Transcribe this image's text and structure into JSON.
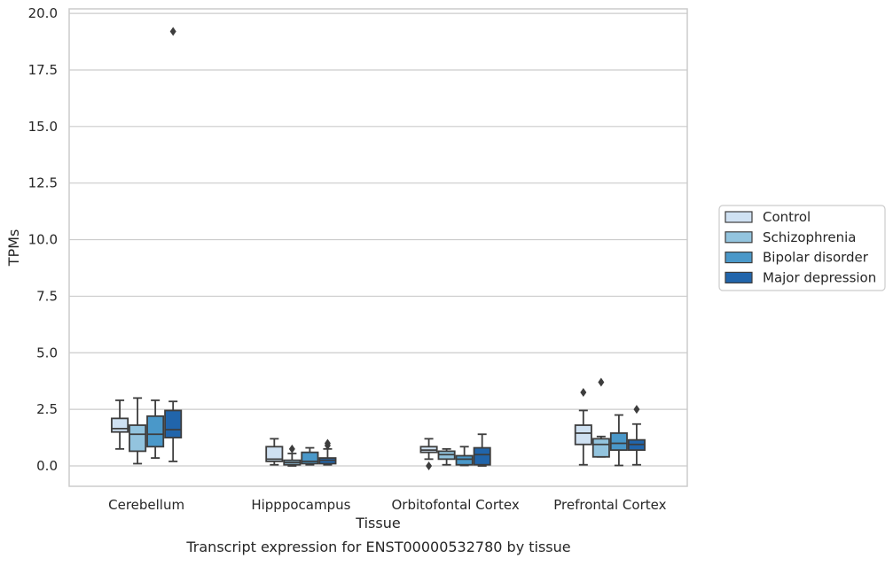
{
  "caption": "Transcript expression for ENST00000532780 by tissue",
  "colors": {
    "Control": "#cfe1f2",
    "Schizophrenia": "#93c4de",
    "Bipolar disorder": "#4a98c9",
    "Major depression": "#2165ab",
    "grid": "#cccccc",
    "frame": "#cccccc",
    "box_edge": "#3d3d3d"
  },
  "chart_data": {
    "type": "box",
    "xlabel": "Tissue",
    "ylabel": "TPMs",
    "ylim": [
      -0.9,
      20.2
    ],
    "yticks": [
      0.0,
      2.5,
      5.0,
      7.5,
      10.0,
      12.5,
      15.0,
      17.5,
      20.0
    ],
    "ytick_labels": [
      "0.0",
      "2.5",
      "5.0",
      "7.5",
      "10.0",
      "12.5",
      "15.0",
      "17.5",
      "20.0"
    ],
    "categories": [
      "Cerebellum",
      "Hipppocampus",
      "Orbitofontal Cortex",
      "Prefrontal Cortex"
    ],
    "grid": true,
    "legend_position": "right",
    "series": [
      {
        "name": "Control",
        "boxes": [
          {
            "whislo": 0.75,
            "q1": 1.5,
            "med": 1.65,
            "q3": 2.1,
            "whishi": 2.9,
            "fliers": []
          },
          {
            "whislo": 0.05,
            "q1": 0.2,
            "med": 0.3,
            "q3": 0.85,
            "whishi": 1.2,
            "fliers": []
          },
          {
            "whislo": 0.3,
            "q1": 0.6,
            "med": 0.7,
            "q3": 0.85,
            "whishi": 1.2,
            "fliers": [
              0.0
            ]
          },
          {
            "whislo": 0.05,
            "q1": 0.95,
            "med": 1.45,
            "q3": 1.8,
            "whishi": 2.45,
            "fliers": [
              3.25
            ]
          }
        ]
      },
      {
        "name": "Schizophrenia",
        "boxes": [
          {
            "whislo": 0.1,
            "q1": 0.65,
            "med": 1.4,
            "q3": 1.8,
            "whishi": 3.0,
            "fliers": []
          },
          {
            "whislo": 0.0,
            "q1": 0.05,
            "med": 0.15,
            "q3": 0.25,
            "whishi": 0.55,
            "fliers": [
              0.75
            ]
          },
          {
            "whislo": 0.05,
            "q1": 0.3,
            "med": 0.5,
            "q3": 0.65,
            "whishi": 0.75,
            "fliers": []
          },
          {
            "whislo": 0.4,
            "q1": 0.4,
            "med": 0.95,
            "q3": 1.2,
            "whishi": 1.3,
            "fliers": [
              3.7
            ]
          }
        ]
      },
      {
        "name": "Bipolar disorder",
        "boxes": [
          {
            "whislo": 0.35,
            "q1": 0.85,
            "med": 1.4,
            "q3": 2.2,
            "whishi": 2.9,
            "fliers": []
          },
          {
            "whislo": 0.05,
            "q1": 0.1,
            "med": 0.2,
            "q3": 0.6,
            "whishi": 0.8,
            "fliers": []
          },
          {
            "whislo": 0.02,
            "q1": 0.05,
            "med": 0.3,
            "q3": 0.45,
            "whishi": 0.85,
            "fliers": []
          },
          {
            "whislo": 0.02,
            "q1": 0.7,
            "med": 1.0,
            "q3": 1.45,
            "whishi": 2.25,
            "fliers": []
          }
        ]
      },
      {
        "name": "Major depression",
        "boxes": [
          {
            "whislo": 0.2,
            "q1": 1.25,
            "med": 1.6,
            "q3": 2.45,
            "whishi": 2.85,
            "fliers": [
              19.2
            ]
          },
          {
            "whislo": 0.05,
            "q1": 0.1,
            "med": 0.25,
            "q3": 0.35,
            "whishi": 0.75,
            "fliers": [
              0.9,
              1.0
            ]
          },
          {
            "whislo": 0.0,
            "q1": 0.05,
            "med": 0.5,
            "q3": 0.8,
            "whishi": 1.4,
            "fliers": []
          },
          {
            "whislo": 0.05,
            "q1": 0.7,
            "med": 0.95,
            "q3": 1.15,
            "whishi": 1.85,
            "fliers": [
              2.5
            ]
          }
        ]
      }
    ]
  }
}
